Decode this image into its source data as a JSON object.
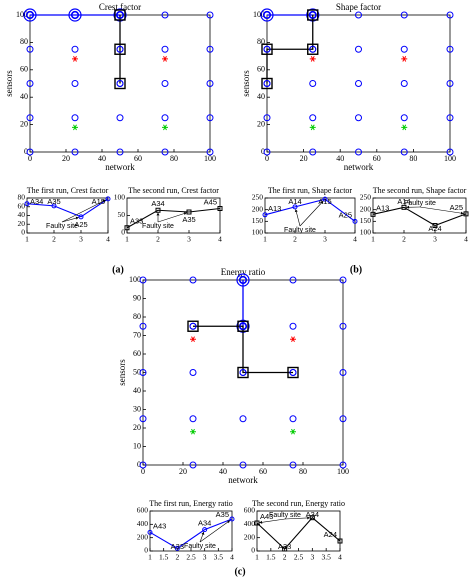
{
  "captions": [
    "(a)",
    "(b)",
    "(c)"
  ],
  "chart_data": [
    {
      "type": "scatter",
      "title": "Crest factor",
      "xlabel": "network",
      "ylabel": "sensors",
      "xlim": [
        0,
        100
      ],
      "ylim": [
        0,
        100
      ],
      "xticks": [
        0,
        20,
        40,
        60,
        80,
        100
      ],
      "yticks": [
        0,
        20,
        40,
        60,
        80,
        100
      ],
      "series": [
        {
          "color": "#0000ff",
          "marker": "circle",
          "x": [
            0,
            25,
            50,
            75,
            100,
            0,
            25,
            50,
            75,
            100,
            0,
            25,
            50,
            75,
            100,
            0,
            25,
            50,
            75,
            100,
            0,
            25,
            50,
            75,
            100
          ],
          "y": [
            0,
            0,
            0,
            0,
            0,
            25,
            25,
            25,
            25,
            25,
            50,
            50,
            50,
            50,
            50,
            75,
            75,
            75,
            75,
            75,
            100,
            100,
            100,
            100,
            100
          ]
        },
        {
          "color": "#ff0000",
          "marker": "star",
          "x": [
            25,
            75
          ],
          "y": [
            68,
            68
          ]
        },
        {
          "color": "#00cc00",
          "marker": "star",
          "x": [
            25,
            75
          ],
          "y": [
            18,
            18
          ]
        },
        {
          "color": "#0000ff",
          "marker": "ring",
          "line": true,
          "x": [
            0,
            25,
            50
          ],
          "y": [
            100,
            100,
            100
          ]
        },
        {
          "color": "#000000",
          "marker": "square",
          "line": true,
          "x": [
            50,
            50,
            50
          ],
          "y": [
            100,
            75,
            50
          ]
        }
      ]
    },
    {
      "type": "line",
      "title": "The first run, Crest factor",
      "x": [
        1,
        2,
        3,
        4
      ],
      "xlim": [
        1,
        4
      ],
      "xticks": [
        1,
        2,
        3,
        4
      ],
      "ylim": [
        0,
        80
      ],
      "yticks": [
        0,
        20,
        40,
        60,
        80
      ],
      "annotation": "Faulty site",
      "series": [
        {
          "color": "#0000ff",
          "marker": "circle",
          "values": [
            67,
            62,
            37,
            78
          ],
          "point_labels": [
            "A34",
            "A35",
            "A25",
            "A15"
          ]
        }
      ]
    },
    {
      "type": "line",
      "title": "The second run, Crest factor",
      "x": [
        1,
        2,
        3,
        4
      ],
      "xlim": [
        1,
        4
      ],
      "xticks": [
        1,
        2,
        3,
        4
      ],
      "ylim": [
        0,
        100
      ],
      "yticks": [
        0,
        50,
        100
      ],
      "annotation": "Faulty site",
      "series": [
        {
          "color": "#000000",
          "marker": "square",
          "values": [
            15,
            65,
            60,
            70
          ],
          "point_labels": [
            "A33",
            "A34",
            "A35",
            "A45"
          ]
        }
      ]
    },
    {
      "type": "scatter",
      "title": "Shape factor",
      "xlabel": "network",
      "ylabel": "sensors",
      "xlim": [
        0,
        100
      ],
      "ylim": [
        0,
        100
      ],
      "xticks": [
        0,
        20,
        40,
        60,
        80,
        100
      ],
      "yticks": [
        0,
        20,
        40,
        60,
        80,
        100
      ],
      "series": [
        {
          "color": "#0000ff",
          "marker": "circle",
          "x": [
            0,
            25,
            50,
            75,
            100,
            0,
            25,
            50,
            75,
            100,
            0,
            25,
            50,
            75,
            100,
            0,
            25,
            50,
            75,
            100,
            0,
            25,
            50,
            75,
            100
          ],
          "y": [
            0,
            0,
            0,
            0,
            0,
            25,
            25,
            25,
            25,
            25,
            50,
            50,
            50,
            50,
            50,
            75,
            75,
            75,
            75,
            75,
            100,
            100,
            100,
            100,
            100
          ]
        },
        {
          "color": "#ff0000",
          "marker": "star",
          "x": [
            25,
            75
          ],
          "y": [
            68,
            68
          ]
        },
        {
          "color": "#00cc00",
          "marker": "star",
          "x": [
            25,
            75
          ],
          "y": [
            18,
            18
          ]
        },
        {
          "color": "#0000ff",
          "marker": "ring",
          "line": true,
          "x": [
            0,
            25
          ],
          "y": [
            100,
            100
          ]
        },
        {
          "color": "#000000",
          "marker": "square",
          "line": true,
          "x": [
            25,
            25,
            0,
            0
          ],
          "y": [
            100,
            75,
            75,
            50
          ]
        }
      ]
    },
    {
      "type": "line",
      "title": "The first run, Shape factor",
      "x": [
        1,
        2,
        3,
        4
      ],
      "xlim": [
        1,
        4
      ],
      "xticks": [
        1,
        2,
        3,
        4
      ],
      "ylim": [
        100,
        250
      ],
      "yticks": [
        100,
        150,
        200,
        250
      ],
      "annotation": "Faulty site",
      "series": [
        {
          "color": "#0000ff",
          "marker": "circle",
          "values": [
            178,
            212,
            245,
            150
          ],
          "point_labels": [
            "A13",
            "A14",
            "A15",
            "A25"
          ]
        }
      ]
    },
    {
      "type": "line",
      "title": "The second run, Shape factor",
      "x": [
        1,
        2,
        3,
        4
      ],
      "xlim": [
        1,
        4
      ],
      "xticks": [
        1,
        2,
        3,
        4
      ],
      "ylim": [
        100,
        250
      ],
      "yticks": [
        100,
        150,
        200,
        250
      ],
      "annotation": "Faulty site",
      "series": [
        {
          "color": "#000000",
          "marker": "square",
          "values": [
            180,
            210,
            132,
            182
          ],
          "point_labels": [
            "A13",
            "A14",
            "A24",
            "A25"
          ]
        }
      ]
    },
    {
      "type": "scatter",
      "title": "Energy ratio",
      "xlabel": "network",
      "ylabel": "sensors",
      "xlim": [
        0,
        100
      ],
      "ylim": [
        0,
        100
      ],
      "xticks": [
        0,
        20,
        40,
        60,
        80,
        100
      ],
      "yticks": [
        0,
        10,
        20,
        30,
        40,
        50,
        60,
        70,
        80,
        90,
        100
      ],
      "series": [
        {
          "color": "#0000ff",
          "marker": "circle",
          "x": [
            0,
            25,
            50,
            75,
            100,
            0,
            25,
            50,
            75,
            100,
            0,
            25,
            50,
            75,
            100,
            0,
            25,
            50,
            75,
            100,
            0,
            25,
            50,
            75,
            100
          ],
          "y": [
            0,
            0,
            0,
            0,
            0,
            25,
            25,
            25,
            25,
            25,
            50,
            50,
            50,
            50,
            50,
            75,
            75,
            75,
            75,
            75,
            100,
            100,
            100,
            100,
            100
          ]
        },
        {
          "color": "#ff0000",
          "marker": "star",
          "x": [
            25,
            75
          ],
          "y": [
            68,
            68
          ]
        },
        {
          "color": "#00cc00",
          "marker": "star",
          "x": [
            25,
            75
          ],
          "y": [
            18,
            18
          ]
        },
        {
          "color": "#0000ff",
          "marker": "ring",
          "line": true,
          "x": [
            50,
            50
          ],
          "y": [
            100,
            75
          ]
        },
        {
          "color": "#000000",
          "marker": "square",
          "line": true,
          "x": [
            25,
            50,
            50,
            75
          ],
          "y": [
            75,
            75,
            50,
            50
          ]
        }
      ]
    },
    {
      "type": "line",
      "title": "The first run, Energy ratio",
      "x": [
        1,
        2,
        3,
        4
      ],
      "xlim": [
        1,
        4
      ],
      "xticks": [
        1,
        1.5,
        2,
        2.5,
        3,
        3.5,
        4
      ],
      "ylim": [
        0,
        600
      ],
      "yticks": [
        0,
        200,
        400,
        600
      ],
      "annotation": "Faulty site",
      "series": [
        {
          "color": "#0000ff",
          "marker": "circle",
          "values": [
            280,
            40,
            320,
            480
          ],
          "point_labels": [
            "A43",
            "A33",
            "A34",
            "A35"
          ]
        }
      ]
    },
    {
      "type": "line",
      "title": "The second run, Energy ratio",
      "x": [
        1,
        2,
        3,
        4
      ],
      "xlim": [
        1,
        4
      ],
      "xticks": [
        1,
        1.5,
        2,
        2.5,
        3,
        3.5,
        4
      ],
      "ylim": [
        0,
        600
      ],
      "yticks": [
        0,
        200,
        400,
        600
      ],
      "annotation": "Faulty site",
      "series": [
        {
          "color": "#000000",
          "marker": "square",
          "values": [
            420,
            30,
            500,
            150
          ],
          "point_labels": [
            "A43",
            "A33",
            "A34",
            "A24"
          ]
        }
      ]
    }
  ]
}
